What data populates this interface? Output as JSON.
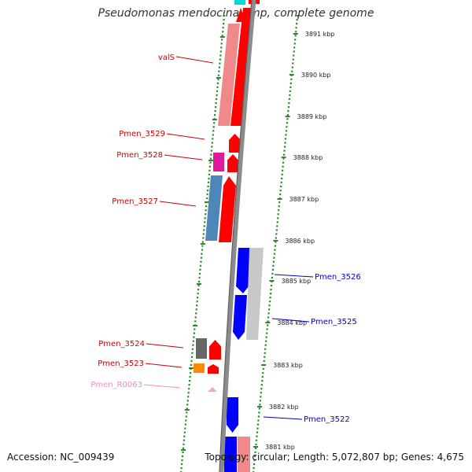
{
  "title": "Pseudomonas mendocina ymp, complete genome",
  "footer": {
    "accession": "Accession: NC_009439",
    "topology": "Topology: circular; Length: 5,072,807 bp; Genes: 4,675"
  },
  "colors": {
    "background": "#ffffff",
    "backbone": "#8c8c8c",
    "tick_dots": "#2a8a2a",
    "forward_cds": "#ff0000",
    "forward_cds_light": "#f08a8a",
    "reverse_cds": "#0000ff",
    "gray_feature": "#c8c8c8",
    "dark_gray_feature": "#666666",
    "steel_blue_feature": "#4f86b8",
    "magenta_feature": "#e0189a",
    "orange_feature": "#ff8a00",
    "pink_feature": "#f4a6c8",
    "cyan_feature": "#00d8d8",
    "forward_label": "#cc0000",
    "reverse_label": "#0000cc",
    "rna_label": "#f08cc0"
  },
  "ticks": [
    {
      "label": "3891 kbp"
    },
    {
      "label": "3890 kbp"
    },
    {
      "label": "3889 kbp"
    },
    {
      "label": "3888 kbp"
    },
    {
      "label": "3887 kbp"
    },
    {
      "label": "3886 kbp"
    },
    {
      "label": "3885 kbp"
    },
    {
      "label": "3884 kbp"
    },
    {
      "label": "3883 kbp"
    },
    {
      "label": "3882 kbp"
    },
    {
      "label": "3881 kbp"
    }
  ],
  "gene_labels": [
    {
      "text": "valS",
      "strand": "forward"
    },
    {
      "text": "Pmen_3529",
      "strand": "forward"
    },
    {
      "text": "Pmen_3528",
      "strand": "forward"
    },
    {
      "text": "Pmen_3527",
      "strand": "forward"
    },
    {
      "text": "Pmen_3526",
      "strand": "reverse"
    },
    {
      "text": "Pmen_3525",
      "strand": "reverse"
    },
    {
      "text": "Pmen_3524",
      "strand": "forward"
    },
    {
      "text": "Pmen_3523",
      "strand": "forward"
    },
    {
      "text": "Pmen_R0063",
      "strand": "rna"
    },
    {
      "text": "Pmen_3522",
      "strand": "reverse"
    }
  ]
}
